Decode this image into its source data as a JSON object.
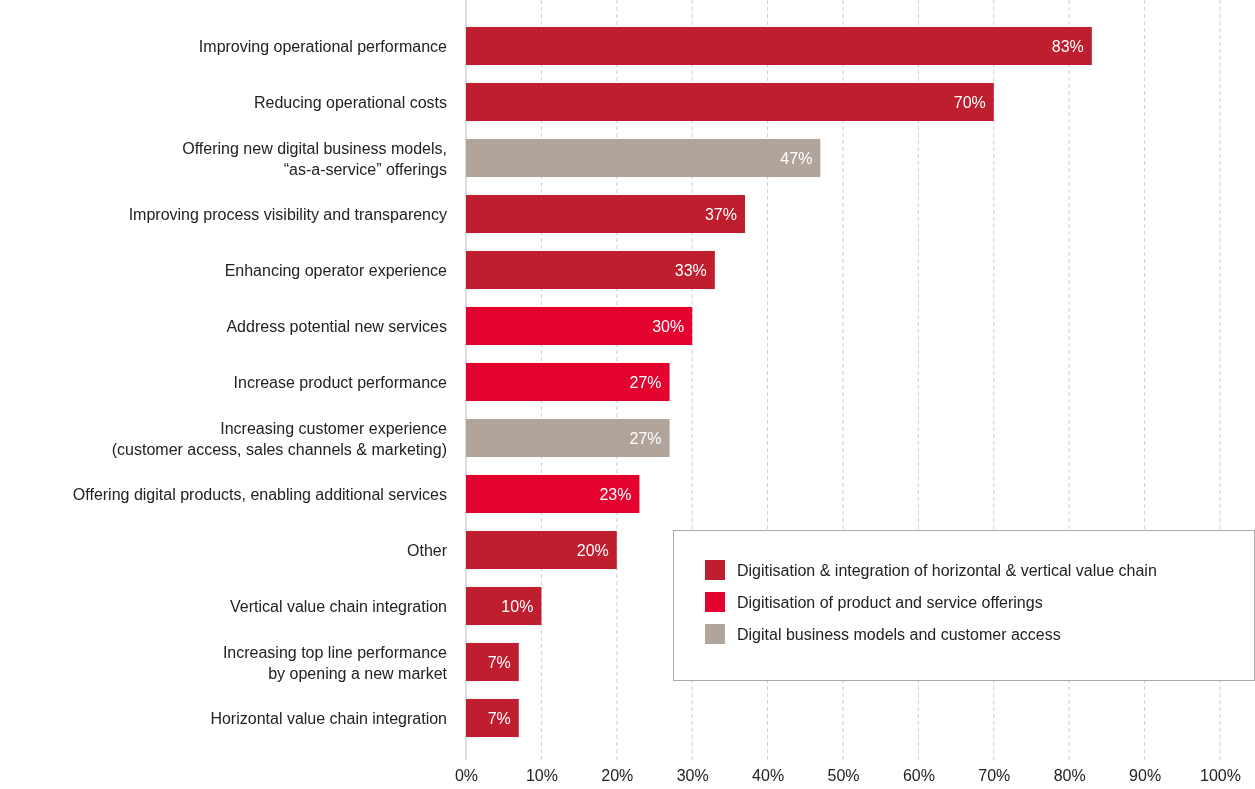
{
  "chart_data": {
    "type": "bar",
    "orientation": "horizontal",
    "categories": [
      "Improving operational performance",
      "Reducing operational costs",
      "Offering new digital business models,\n“as-a-service” offerings",
      "Improving process visibility and transparency",
      "Enhancing operator experience",
      "Address potential new services",
      "Increase product performance",
      "Increasing customer experience\n(customer access, sales channels & marketing)",
      "Offering digital products, enabling additional services",
      "Other",
      "Vertical value chain integration",
      "Increasing top line performance\nby opening a new market",
      "Horizontal value chain integration"
    ],
    "series": [
      {
        "name": "Digitisation & integration of horizontal & vertical value chain",
        "color": "#be1e2d",
        "values": [
          83,
          70,
          null,
          37,
          33,
          null,
          null,
          null,
          null,
          20,
          10,
          7,
          7
        ],
        "value_labels": [
          "83%",
          "70%",
          null,
          "37%",
          "33%",
          null,
          null,
          null,
          null,
          "20%",
          "10%",
          "7%",
          "7%"
        ]
      },
      {
        "name": "Digitisation of product and service offerings",
        "color": "#e4032e",
        "values": [
          null,
          null,
          null,
          null,
          null,
          30,
          27,
          null,
          23,
          null,
          null,
          null,
          null
        ],
        "value_labels": [
          null,
          null,
          null,
          null,
          null,
          "30%",
          "27%",
          null,
          "23%",
          null,
          null,
          null,
          null
        ]
      },
      {
        "name": "Digital business models and customer access",
        "color": "#b1a59b",
        "values": [
          null,
          null,
          47,
          null,
          null,
          null,
          null,
          27,
          null,
          null,
          null,
          null,
          null
        ],
        "value_labels": [
          null,
          null,
          "47%",
          null,
          null,
          null,
          null,
          "27%",
          null,
          null,
          null,
          null,
          null
        ]
      }
    ],
    "xlim": [
      0,
      100
    ],
    "xticks": [
      {
        "value": 0,
        "label": "0%"
      },
      {
        "value": 10,
        "label": "10%"
      },
      {
        "value": 20,
        "label": "20%"
      },
      {
        "value": 30,
        "label": "30%"
      },
      {
        "value": 40,
        "label": "40%"
      },
      {
        "value": 50,
        "label": "50%"
      },
      {
        "value": 60,
        "label": "60%"
      },
      {
        "value": 70,
        "label": "70%"
      },
      {
        "value": 80,
        "label": "80%"
      },
      {
        "value": 90,
        "label": "90%"
      },
      {
        "value": 100,
        "label": "100%"
      }
    ],
    "grid": "x",
    "legend": "bottom right"
  }
}
